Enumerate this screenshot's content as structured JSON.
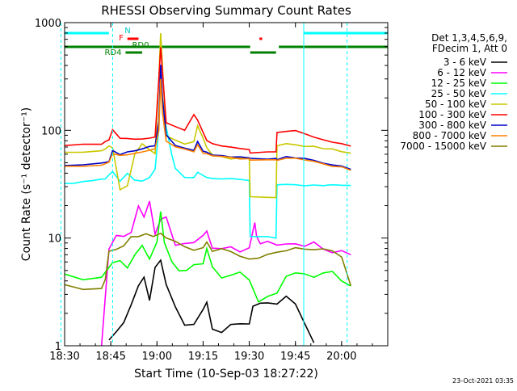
{
  "chart_data": {
    "type": "line",
    "title": "RHESSI Observing Summary Count Rates",
    "xlabel": "Start Time (10-Sep-03 18:27:22)",
    "ylabel": "Count Rate (s⁻¹ detector⁻¹)",
    "y_scale": "log",
    "ylim": [
      1,
      1000
    ],
    "xlim_minutes": [
      18.5,
      20.25
    ],
    "x_ticks": [
      {
        "label": "18:30",
        "t": 18.5
      },
      {
        "label": "18:45",
        "t": 18.75
      },
      {
        "label": "19:00",
        "t": 19.0
      },
      {
        "label": "19:15",
        "t": 19.25
      },
      {
        "label": "19:30",
        "t": 19.5
      },
      {
        "label": "19:45",
        "t": 19.75
      },
      {
        "label": "20:00",
        "t": 20.0
      }
    ],
    "y_ticks": [
      {
        "label": "1",
        "v": 1
      },
      {
        "label": "10",
        "v": 10
      },
      {
        "label": "100",
        "v": 100
      },
      {
        "label": "1000",
        "v": 1000
      }
    ],
    "legend_header": [
      "Det 1,3,4,5,6,9,",
      "FDecim 1, Att 0"
    ],
    "legend_position": "right",
    "vertical_markers": [
      18.48,
      18.76,
      19.795,
      20.03
    ],
    "flags": [
      {
        "label": "N",
        "color": "#00ffff",
        "row": 0,
        "segments": [
          [
            18.48,
            18.74
          ],
          [
            19.795,
            20.25
          ]
        ]
      },
      {
        "label": "F",
        "color": "#ff0000",
        "row": 1,
        "segments": [
          [
            18.84,
            18.9
          ],
          [
            19.555,
            19.57
          ]
        ]
      },
      {
        "label": "RD0",
        "color": "#008000",
        "row": 2,
        "segments": [
          [
            18.48,
            19.505
          ],
          [
            19.66,
            20.25
          ]
        ]
      },
      {
        "label": "RD4",
        "color": "#008000",
        "row": 3,
        "segments": [
          [
            18.83,
            18.92
          ],
          [
            19.505,
            19.645
          ]
        ]
      }
    ],
    "series": [
      {
        "name": "3 - 6 keV",
        "color": "#000000",
        "t": [
          18.5,
          18.72,
          18.74,
          18.78,
          18.82,
          18.86,
          18.9,
          18.93,
          18.96,
          18.99,
          19.02,
          19.05,
          19.1,
          19.15,
          19.2,
          19.25,
          19.27,
          19.3,
          19.35,
          19.4,
          19.45,
          19.5,
          19.52,
          19.56,
          19.6,
          19.65,
          19.7,
          19.75,
          19.8,
          19.85
        ],
        "v": [
          null,
          null,
          1.1,
          1.4,
          1.6,
          2.2,
          3.5,
          4.2,
          2.8,
          5.0,
          6.0,
          3.5,
          2.2,
          1.6,
          1.5,
          2.3,
          2.5,
          1.5,
          1.4,
          1.5,
          1.5,
          1.5,
          2.5,
          2.5,
          2.4,
          2.5,
          3.0,
          2.5,
          1.5,
          1.0
        ]
      },
      {
        "name": "6 - 12 keV",
        "color": "#ff00ff",
        "t": [
          18.7,
          18.74,
          18.78,
          18.82,
          18.86,
          18.9,
          18.93,
          18.96,
          18.99,
          19.02,
          19.05,
          19.1,
          19.15,
          19.2,
          19.25,
          19.27,
          19.3,
          19.35,
          19.4,
          19.45,
          19.5,
          19.53,
          19.54,
          19.56,
          19.6,
          19.65,
          19.7,
          19.75,
          19.8,
          19.85,
          19.9,
          19.95,
          20.0,
          20.05
        ],
        "v": [
          1.0,
          8.0,
          10.0,
          11.0,
          12.0,
          20.0,
          16.0,
          22.0,
          10.0,
          15.0,
          15.0,
          9.0,
          9.0,
          8.5,
          10.0,
          12.0,
          8.0,
          7.5,
          8.0,
          8.0,
          8.0,
          15.0,
          10.0,
          9.0,
          9.0,
          9.0,
          9.0,
          9.0,
          8.5,
          8.5,
          8.0,
          8.0,
          8.0,
          7.5
        ]
      },
      {
        "name": "12 - 25 keV",
        "color": "#00ff00",
        "t": [
          18.5,
          18.6,
          18.7,
          18.72,
          18.76,
          18.8,
          18.84,
          18.88,
          18.92,
          18.96,
          19.0,
          19.02,
          19.04,
          19.08,
          19.12,
          19.16,
          19.2,
          19.25,
          19.27,
          19.3,
          19.35,
          19.4,
          19.45,
          19.5,
          19.55,
          19.6,
          19.65,
          19.7,
          19.75,
          19.8,
          19.85,
          19.9,
          19.95,
          20.0,
          20.05
        ],
        "v": [
          4.5,
          4.5,
          4.5,
          5.0,
          6.0,
          6.5,
          5.0,
          7.0,
          8.5,
          6.0,
          9.0,
          17.0,
          10.0,
          6.0,
          5.0,
          5.0,
          5.5,
          6.0,
          8.0,
          5.0,
          4.5,
          4.5,
          4.5,
          4.0,
          2.8,
          2.8,
          3.0,
          4.5,
          4.5,
          4.5,
          4.5,
          4.5,
          4.5,
          4.0,
          3.8
        ]
      },
      {
        "name": "25 - 50 keV",
        "color": "#00ffff",
        "t": [
          18.5,
          18.55,
          18.6,
          18.65,
          18.7,
          18.72,
          18.74,
          18.76,
          18.8,
          18.84,
          18.88,
          18.92,
          18.96,
          18.99,
          19.01,
          19.02,
          19.03,
          19.05,
          19.08,
          19.1,
          19.15,
          19.2,
          19.22,
          19.25,
          19.27,
          19.3,
          19.35,
          19.4,
          19.45,
          19.5,
          19.505,
          19.6,
          19.645,
          19.65,
          19.7,
          19.75,
          19.8,
          19.85,
          19.9,
          19.95,
          20.0,
          20.05
        ],
        "v": [
          32,
          32,
          33,
          34,
          35,
          36,
          38,
          42,
          34,
          40,
          34,
          34,
          36,
          44,
          100,
          300,
          200,
          110,
          60,
          44,
          36,
          36,
          40,
          38,
          36,
          36,
          36,
          36,
          35,
          34,
          10,
          10,
          10,
          31,
          31,
          31,
          31,
          31,
          31,
          31,
          31,
          31
        ]
      },
      {
        "name": "50 - 100 keV",
        "color": "#c8c800",
        "t": [
          18.5,
          18.6,
          18.7,
          18.72,
          18.74,
          18.76,
          18.8,
          18.84,
          18.88,
          18.92,
          18.96,
          18.99,
          19.01,
          19.02,
          19.03,
          19.05,
          19.1,
          19.15,
          19.2,
          19.22,
          19.25,
          19.27,
          19.3,
          19.35,
          19.4,
          19.45,
          19.5,
          19.505,
          19.6,
          19.645,
          19.65,
          19.7,
          19.75,
          19.8,
          19.85,
          19.9,
          19.95,
          20.0,
          20.05
        ],
        "v": [
          62,
          63,
          65,
          68,
          72,
          70,
          28,
          30,
          60,
          75,
          65,
          60,
          300,
          800,
          400,
          90,
          80,
          75,
          80,
          110,
          85,
          70,
          60,
          58,
          55,
          55,
          55,
          24,
          24,
          24,
          72,
          74,
          74,
          72,
          70,
          68,
          66,
          64,
          62
        ]
      },
      {
        "name": "100 - 300 keV",
        "color": "#ff0000",
        "t": [
          18.5,
          18.6,
          18.7,
          18.72,
          18.74,
          18.76,
          18.8,
          18.84,
          18.88,
          18.92,
          18.96,
          18.99,
          19.01,
          19.02,
          19.03,
          19.05,
          19.1,
          19.15,
          19.2,
          19.22,
          19.25,
          19.27,
          19.3,
          19.35,
          19.4,
          19.45,
          19.5,
          19.505,
          19.6,
          19.645,
          19.65,
          19.7,
          19.75,
          19.8,
          19.85,
          19.9,
          19.95,
          20.0,
          20.05
        ],
        "v": [
          72,
          73,
          75,
          78,
          82,
          100,
          85,
          84,
          82,
          83,
          84,
          86,
          300,
          600,
          350,
          120,
          110,
          100,
          140,
          125,
          95,
          80,
          75,
          72,
          70,
          68,
          66,
          62,
          62,
          62,
          95,
          98,
          98,
          94,
          88,
          82,
          78,
          74,
          70
        ]
      },
      {
        "name": "300 - 800 keV",
        "color": "#0000c8",
        "t": [
          18.5,
          18.6,
          18.7,
          18.74,
          18.76,
          18.8,
          18.84,
          18.88,
          18.92,
          18.96,
          18.99,
          19.01,
          19.02,
          19.03,
          19.05,
          19.1,
          19.15,
          19.2,
          19.22,
          19.25,
          19.27,
          19.3,
          19.35,
          19.4,
          19.45,
          19.5,
          19.505,
          19.6,
          19.645,
          19.65,
          19.7,
          19.75,
          19.8,
          19.85,
          19.9,
          19.95,
          20.0,
          20.05
        ],
        "v": [
          48,
          48,
          50,
          52,
          64,
          60,
          62,
          64,
          66,
          70,
          72,
          120,
          400,
          200,
          90,
          72,
          68,
          65,
          80,
          63,
          62,
          60,
          58,
          57,
          56,
          55,
          54,
          54,
          54,
          54,
          58,
          56,
          54,
          52,
          50,
          48,
          46,
          43
        ]
      },
      {
        "name": "800 - 7000 keV",
        "color": "#ff8000",
        "t": [
          18.5,
          18.6,
          18.7,
          18.74,
          18.76,
          18.8,
          18.84,
          18.88,
          18.92,
          18.96,
          18.99,
          19.01,
          19.02,
          19.03,
          19.05,
          19.1,
          19.15,
          19.2,
          19.22,
          19.25,
          19.27,
          19.3,
          19.35,
          19.4,
          19.45,
          19.5,
          19.505,
          19.6,
          19.645,
          19.65,
          19.7,
          19.75,
          19.8,
          19.85,
          19.9,
          19.95,
          20.0,
          20.05
        ],
        "v": [
          46,
          46,
          48,
          50,
          60,
          58,
          60,
          62,
          64,
          66,
          68,
          100,
          300,
          150,
          80,
          70,
          66,
          64,
          75,
          62,
          60,
          58,
          57,
          56,
          55,
          54,
          53,
          53,
          53,
          53,
          56,
          55,
          53,
          51,
          49,
          47,
          45,
          42
        ]
      },
      {
        "name": "7000 - 15000 keV",
        "color": "#808000",
        "t": [
          18.5,
          18.6,
          18.7,
          18.72,
          18.74,
          18.78,
          18.82,
          18.86,
          18.9,
          18.94,
          18.98,
          19.02,
          19.05,
          19.1,
          19.15,
          19.2,
          19.25,
          19.27,
          19.3,
          19.35,
          19.4,
          19.45,
          19.5,
          19.55,
          19.6,
          19.65,
          19.7,
          19.75,
          19.8,
          19.85,
          19.9,
          19.95,
          20.0,
          20.05
        ],
        "v": [
          3.5,
          3.5,
          3.6,
          4.0,
          7.0,
          8.0,
          8.5,
          9.5,
          10.0,
          11.0,
          10.0,
          11.0,
          10.0,
          9.0,
          8.0,
          8.0,
          8.5,
          10.0,
          8.0,
          7.5,
          7.5,
          7.0,
          7.0,
          7.0,
          6.5,
          7.0,
          7.5,
          7.5,
          7.5,
          7.5,
          7.5,
          7.0,
          6.5,
          3.5
        ]
      }
    ],
    "grid": false
  },
  "footer": {
    "timestamp": "23-Oct-2021 03:35"
  }
}
